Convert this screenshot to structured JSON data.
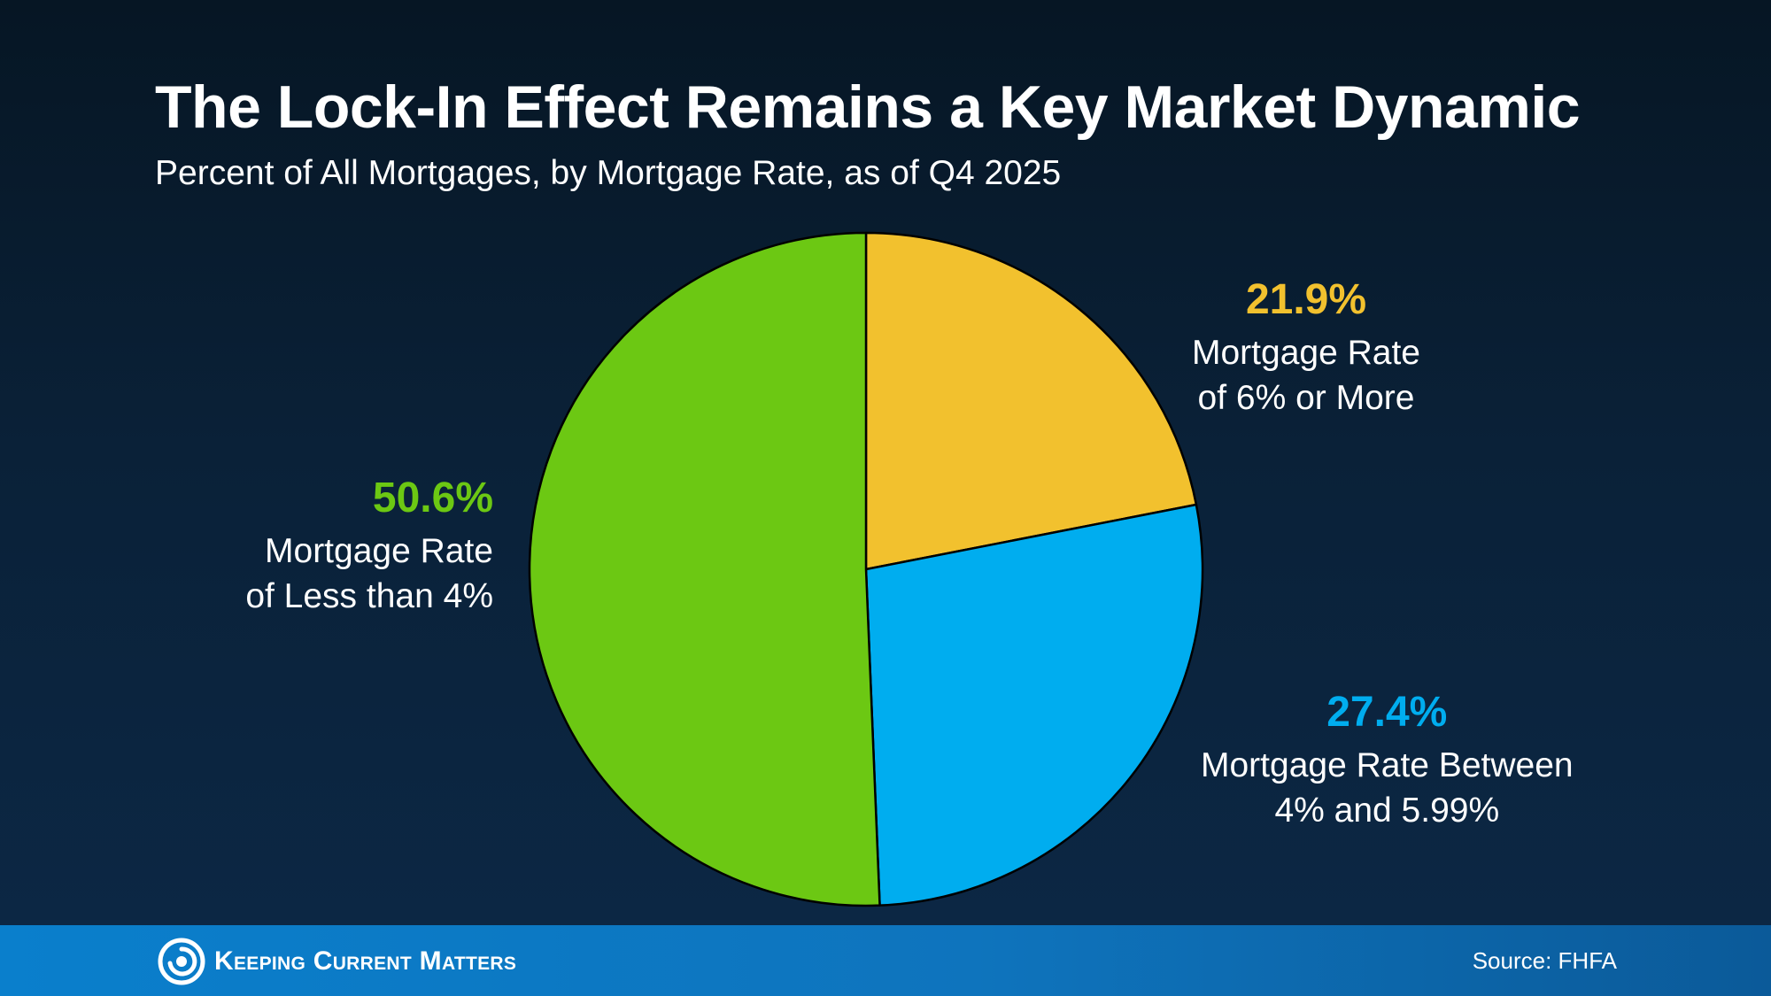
{
  "title": "The Lock-In Effect Remains a Key Market Dynamic",
  "subtitle": "Percent of All Mortgages, by Mortgage Rate, as of Q4 2025",
  "chart_data": {
    "type": "pie",
    "title": "The Lock-In Effect Remains a Key Market Dynamic",
    "subtitle": "Percent of All Mortgages, by Mortgage Rate, as of Q4 2025",
    "slices": [
      {
        "value": 21.9,
        "label_value": "21.9%",
        "label_line1": "Mortgage Rate",
        "label_line2": "of 6% or More",
        "color": "#f2c12e"
      },
      {
        "value": 27.4,
        "label_value": "27.4%",
        "label_line1": "Mortgage Rate Between",
        "label_line2": "4% and 5.99%",
        "color": "#00adef"
      },
      {
        "value": 50.6,
        "label_value": "50.6%",
        "label_line1": "Mortgage Rate",
        "label_line2": "of Less than 4%",
        "color": "#6cc813"
      }
    ],
    "start_angle": "12 o'clock",
    "direction": "clockwise",
    "slice_border_color": "#000000",
    "legend": "none (direct labels)"
  },
  "footer": {
    "brand": "Keeping Current Matters",
    "source": "Source: FHFA",
    "logo_icon": "swirl-icon"
  },
  "colors": {
    "background_top": "#061624",
    "background_bottom": "#0c2846",
    "footer_bar": "#0a7fcc",
    "text": "#ffffff"
  }
}
